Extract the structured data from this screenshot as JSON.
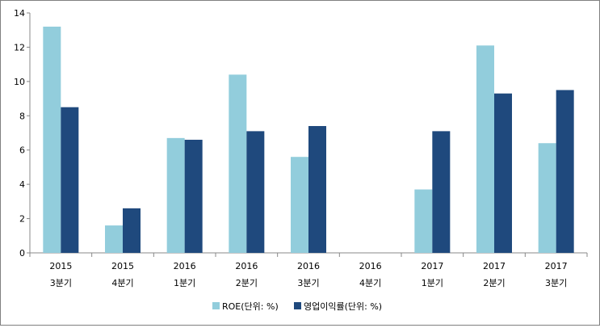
{
  "chart_data": {
    "type": "bar",
    "categories": [
      [
        "2015",
        "3분기"
      ],
      [
        "2015",
        "4분기"
      ],
      [
        "2016",
        "1분기"
      ],
      [
        "2016",
        "2분기"
      ],
      [
        "2016",
        "3분기"
      ],
      [
        "2016",
        "4분기"
      ],
      [
        "2017",
        "1분기"
      ],
      [
        "2017",
        "2분기"
      ],
      [
        "2017",
        "3분기"
      ]
    ],
    "series": [
      {
        "name": "ROE(단위: %)",
        "color": "#92cddc",
        "values": [
          13.2,
          1.6,
          6.7,
          10.4,
          5.6,
          null,
          3.7,
          12.1,
          6.4
        ]
      },
      {
        "name": "영업이익률(단위: %)",
        "color": "#1f497d",
        "values": [
          8.5,
          2.6,
          6.6,
          7.1,
          7.4,
          null,
          7.1,
          9.3,
          9.5
        ]
      }
    ],
    "ylim": [
      0,
      14
    ],
    "yticks": [
      "0",
      "2",
      "4",
      "6",
      "8",
      "10",
      "12",
      "14"
    ],
    "grid": false,
    "legend_position": "bottom"
  }
}
